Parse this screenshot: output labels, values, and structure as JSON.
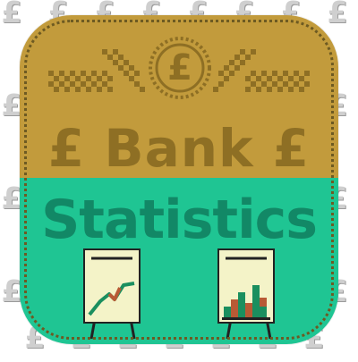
{
  "background": {
    "symbol": "£",
    "color": "#cfcfcf"
  },
  "icon": {
    "title_top": "£ Bank £",
    "title_bottom": "Statistics",
    "coin_symbol": "£",
    "colors": {
      "gold": "#c29b3c",
      "dark_gold": "#8e6f24",
      "green": "#1fc593",
      "dark_green": "#128866",
      "chart_red": "#b85a35",
      "board": "#f4f3c8"
    }
  },
  "graphics": {
    "left_board": "line-chart-icon",
    "right_board": "bar-chart-icon"
  }
}
